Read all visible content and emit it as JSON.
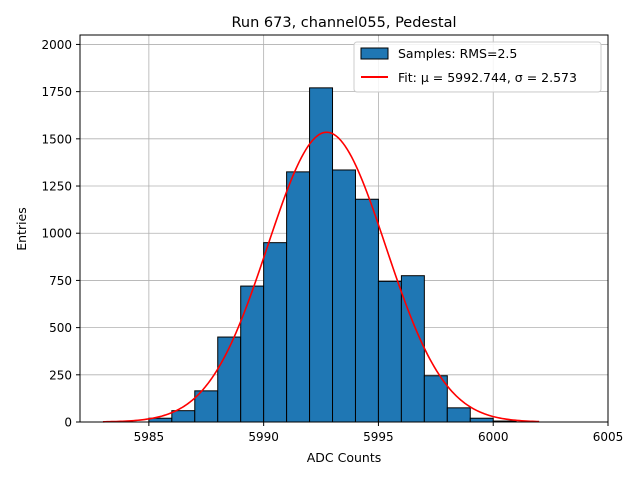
{
  "chart_data": {
    "type": "histogram",
    "title": "Run 673, channel055, Pedestal",
    "xlabel": "ADC Counts",
    "ylabel": "Entries",
    "xlim": [
      5982,
      6005
    ],
    "ylim": [
      0,
      2050
    ],
    "xticks": [
      5985,
      5990,
      5995,
      6000,
      6005
    ],
    "yticks": [
      0,
      250,
      500,
      750,
      1000,
      1250,
      1500,
      1750,
      2000
    ],
    "grid": true,
    "bins": [
      {
        "left": 5985,
        "right": 5986,
        "count": 20
      },
      {
        "left": 5986,
        "right": 5987,
        "count": 60
      },
      {
        "left": 5987,
        "right": 5988,
        "count": 165
      },
      {
        "left": 5988,
        "right": 5989,
        "count": 450
      },
      {
        "left": 5989,
        "right": 5990,
        "count": 720
      },
      {
        "left": 5990,
        "right": 5991,
        "count": 950
      },
      {
        "left": 5991,
        "right": 5992,
        "count": 1325
      },
      {
        "left": 5992,
        "right": 5993,
        "count": 1770
      },
      {
        "left": 5993,
        "right": 5994,
        "count": 1335
      },
      {
        "left": 5994,
        "right": 5995,
        "count": 1180
      },
      {
        "left": 5995,
        "right": 5996,
        "count": 745
      },
      {
        "left": 5996,
        "right": 5997,
        "count": 775
      },
      {
        "left": 5997,
        "right": 5998,
        "count": 245
      },
      {
        "left": 5998,
        "right": 5999,
        "count": 75
      },
      {
        "left": 5999,
        "right": 6000,
        "count": 20
      },
      {
        "left": 6000,
        "right": 6001,
        "count": 5
      }
    ],
    "fit": {
      "mu": 5992.744,
      "sigma": 2.573,
      "amplitude": 1535,
      "x_range": [
        5983,
        6002
      ]
    },
    "legend": {
      "position": "top-right",
      "entries": [
        {
          "label": "Samples: RMS=2.5",
          "kind": "patch",
          "color": "#1f77b4"
        },
        {
          "label": "Fit: μ = 5992.744, σ = 2.573",
          "kind": "line",
          "color": "#ff0000"
        }
      ]
    },
    "colors": {
      "bar_fill": "#1f77b4",
      "bar_edge": "#000000",
      "fit_line": "#ff0000",
      "grid": "#b0b0b0"
    }
  }
}
